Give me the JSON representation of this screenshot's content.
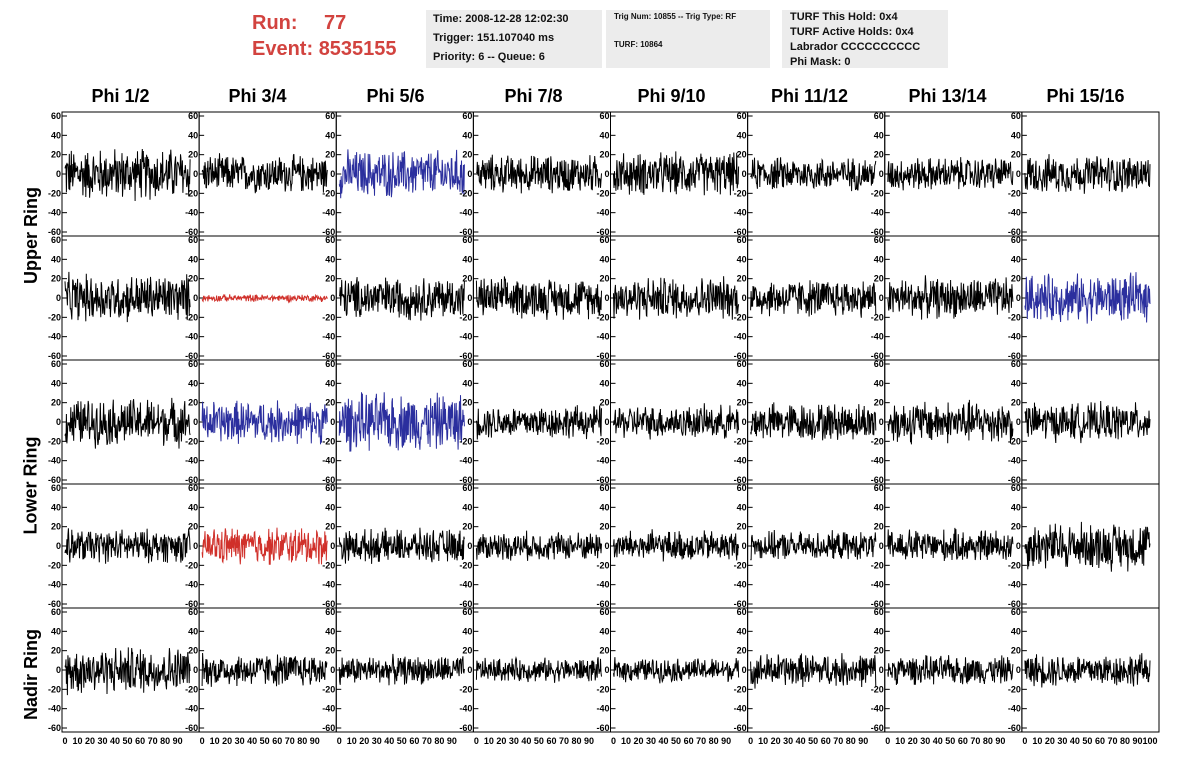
{
  "header": {
    "run_label": "Run:",
    "run_value": "77",
    "event_label": "Event:",
    "event_value": "8535155"
  },
  "info_panel_1": {
    "time": "Time: 2008-12-28 12:02:30",
    "trigger": "Trigger: 151.107040 ms",
    "priority": "Priority: 6 -- Queue: 6"
  },
  "info_panel_2": {
    "trig": "Trig Num: 10855 -- Trig Type: RF",
    "turf": "TURF: 10864"
  },
  "info_panel_3": {
    "this_hold": "TURF This Hold: 0x4",
    "active_holds": "TURF Active Holds: 0x4",
    "labrador": "Labrador CCCCCCCCCC",
    "phi_mask": "Phi Mask: 0"
  },
  "columns": [
    "Phi 1/2",
    "Phi 3/4",
    "Phi 5/6",
    "Phi 7/8",
    "Phi 9/10",
    "Phi 11/12",
    "Phi 13/14",
    "Phi 15/16"
  ],
  "ring_labels": {
    "upper": "Upper Ring",
    "lower": "Lower Ring",
    "nadir": "Nadir Ring"
  },
  "colors": {
    "header_text": "#d2433f",
    "info_bg": "#ececec",
    "trace_default": "#000000",
    "trace_blue": "#2b2f9e",
    "trace_red": "#d0302a"
  },
  "chart_data": {
    "type": "line",
    "description_rows": [
      "Upper Ring (top)",
      "Upper Ring (bottom)",
      "Lower Ring (top)",
      "Lower Ring (bottom)",
      "Nadir Ring"
    ],
    "ylim": [
      -60,
      60
    ],
    "xlim": [
      0,
      100
    ],
    "y_tick_labels": [
      "60",
      "40",
      "20",
      "0",
      "-20",
      "-40",
      "-60"
    ],
    "x_tick_labels": [
      "0",
      "10",
      "20",
      "30",
      "40",
      "50",
      "60",
      "70",
      "80",
      "90",
      "100"
    ],
    "panels": [
      [
        {
          "color": "black",
          "amp": 22
        },
        {
          "color": "black",
          "amp": 16
        },
        {
          "color": "blue",
          "amp": 20
        },
        {
          "color": "black",
          "amp": 16
        },
        {
          "color": "black",
          "amp": 18
        },
        {
          "color": "black",
          "amp": 14
        },
        {
          "color": "black",
          "amp": 14
        },
        {
          "color": "black",
          "amp": 16
        }
      ],
      [
        {
          "color": "black",
          "amp": 20
        },
        {
          "color": "red",
          "amp": 3
        },
        {
          "color": "black",
          "amp": 18
        },
        {
          "color": "black",
          "amp": 17
        },
        {
          "color": "black",
          "amp": 18
        },
        {
          "color": "black",
          "amp": 16
        },
        {
          "color": "black",
          "amp": 17
        },
        {
          "color": "blue",
          "amp": 20
        }
      ],
      [
        {
          "color": "black",
          "amp": 20
        },
        {
          "color": "blue",
          "amp": 18
        },
        {
          "color": "blue",
          "amp": 24
        },
        {
          "color": "black",
          "amp": 14
        },
        {
          "color": "black",
          "amp": 14
        },
        {
          "color": "black",
          "amp": 16
        },
        {
          "color": "black",
          "amp": 18
        },
        {
          "color": "black",
          "amp": 16
        }
      ],
      [
        {
          "color": "black",
          "amp": 14
        },
        {
          "color": "red",
          "amp": 16
        },
        {
          "color": "black",
          "amp": 14
        },
        {
          "color": "black",
          "amp": 12
        },
        {
          "color": "black",
          "amp": 13
        },
        {
          "color": "black",
          "amp": 12
        },
        {
          "color": "black",
          "amp": 14
        },
        {
          "color": "black",
          "amp": 20
        }
      ],
      [
        {
          "color": "black",
          "amp": 20
        },
        {
          "color": "black",
          "amp": 14
        },
        {
          "color": "black",
          "amp": 12
        },
        {
          "color": "black",
          "amp": 10
        },
        {
          "color": "black",
          "amp": 10
        },
        {
          "color": "black",
          "amp": 14
        },
        {
          "color": "black",
          "amp": 12
        },
        {
          "color": "black",
          "amp": 14
        }
      ]
    ]
  }
}
